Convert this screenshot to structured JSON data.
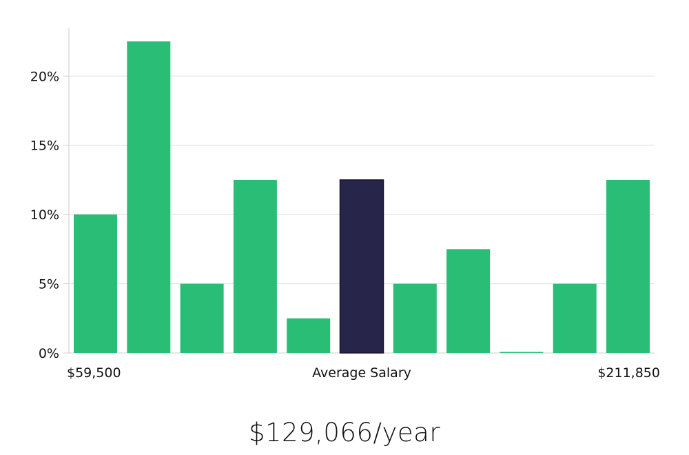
{
  "chart_data": {
    "type": "bar",
    "title": "",
    "xlabel": "Average Salary",
    "ylabel": "",
    "x_range_labels": {
      "min": "$59,500",
      "max": "$211,850"
    },
    "ylim": [
      0,
      23.5
    ],
    "yticks": [
      0,
      5,
      10,
      15,
      20
    ],
    "ytick_labels": [
      "0%",
      "5%",
      "10%",
      "15%",
      "20%"
    ],
    "grid": true,
    "highlight_index": 5,
    "values": [
      10,
      22.5,
      5,
      12.5,
      2.5,
      12.5,
      5,
      7.5,
      0,
      5,
      12.5
    ],
    "colors": {
      "bar": "#2abd76",
      "highlight": "#28254a",
      "grid": "#dddddd",
      "axis": "#cccccc"
    }
  },
  "summary": {
    "average_salary": "$129,066/year"
  }
}
